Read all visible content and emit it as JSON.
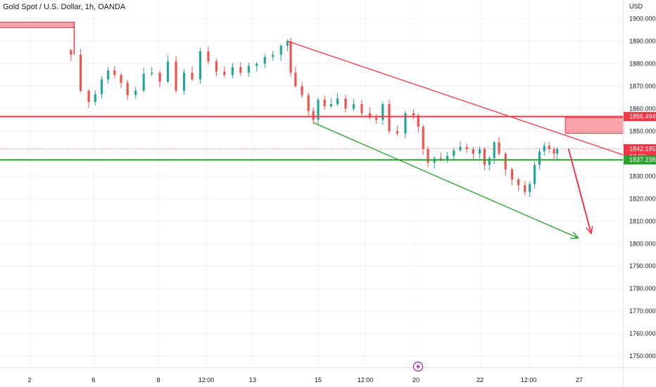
{
  "header": {
    "title": "Gold Spot / U.S. Dollar, 1h, OANDA"
  },
  "price_axis": {
    "unit": "USD",
    "ticks": [
      "1900.000",
      "1890.000",
      "1880.000",
      "1870.000",
      "1860.000",
      "1850.000",
      "1830.000",
      "1820.000",
      "1810.000",
      "1800.000",
      "1790.000",
      "1780.000",
      "1770.000",
      "1760.000",
      "1750.000"
    ]
  },
  "time_axis": {
    "ticks": [
      "2",
      "6",
      "8",
      "12:00",
      "13",
      "15",
      "12:00",
      "20",
      "22",
      "12:00",
      "27"
    ]
  },
  "price_labels": {
    "resistance": {
      "text": "1856.494",
      "color": "#f23645"
    },
    "current": {
      "text": "1842.185",
      "countdown": "17:53",
      "color": "#f23645"
    },
    "support": {
      "text": "1837.238",
      "color": "#2ba02d"
    }
  },
  "event_marker": {
    "icon": "lightning-icon",
    "color": "#9c27b0"
  },
  "chart_data": {
    "type": "candlestick",
    "title": "Gold Spot / U.S. Dollar, 1h, OANDA",
    "x_unit": "hourly bars, days of month",
    "y_unit": "USD",
    "ylim": [
      1745,
      1904
    ],
    "grid": true,
    "horizontal_levels": [
      {
        "name": "resistance",
        "price": 1856.494,
        "color": "#f23645"
      },
      {
        "name": "support",
        "price": 1837.238,
        "color": "#2ba02d"
      }
    ],
    "current_price": 1842.185,
    "zones": [
      {
        "from_day": 1.2,
        "to_day": 5.4,
        "high": 1898.5,
        "low": 1896.0,
        "color": "#f23645"
      },
      {
        "from_day": 20.6,
        "to_day": 22.4,
        "high": 1856.0,
        "low": 1849.0,
        "color": "#f23645"
      }
    ],
    "trendlines": [
      {
        "name": "upper-channel",
        "from": [
          12.0,
          1890.0
        ],
        "to": [
          23.0,
          1836.5
        ],
        "color": "#f23645",
        "arrow": true
      },
      {
        "name": "lower-channel",
        "from": [
          12.8,
          1853.8
        ],
        "to": [
          21.0,
          1802.5
        ],
        "color": "#2ba02d",
        "arrow": true
      },
      {
        "name": "forecast",
        "from": [
          20.7,
          1842.2
        ],
        "to": [
          21.4,
          1804.5
        ],
        "color": "#f23645",
        "arrow": true
      }
    ],
    "closes": [
      [
        5.3,
        1884.0
      ],
      [
        5.6,
        1868.0
      ],
      [
        5.85,
        1863.0
      ],
      [
        6.05,
        1866.5
      ],
      [
        6.25,
        1873.0
      ],
      [
        6.45,
        1877.0
      ],
      [
        6.65,
        1875.0
      ],
      [
        6.85,
        1871.5
      ],
      [
        7.05,
        1866.0
      ],
      [
        7.3,
        1868.0
      ],
      [
        7.55,
        1875.5
      ],
      [
        7.8,
        1876.0
      ],
      [
        8.05,
        1872.0
      ],
      [
        8.3,
        1881.0
      ],
      [
        8.55,
        1868.0
      ],
      [
        8.8,
        1876.0
      ],
      [
        9.05,
        1873.0
      ],
      [
        9.3,
        1885.5
      ],
      [
        9.55,
        1881.0
      ],
      [
        9.8,
        1876.5
      ],
      [
        10.05,
        1875.0
      ],
      [
        10.3,
        1878.5
      ],
      [
        10.55,
        1876.0
      ],
      [
        10.8,
        1879.0
      ],
      [
        11.05,
        1880.0
      ],
      [
        11.3,
        1883.0
      ],
      [
        11.55,
        1884.0
      ],
      [
        11.8,
        1888.0
      ],
      [
        12.0,
        1890.0
      ],
      [
        12.1,
        1876.0
      ],
      [
        12.25,
        1870.0
      ],
      [
        12.45,
        1866.0
      ],
      [
        12.65,
        1859.0
      ],
      [
        12.8,
        1855.0
      ],
      [
        12.95,
        1864.0
      ],
      [
        13.15,
        1861.0
      ],
      [
        13.35,
        1862.0
      ],
      [
        13.55,
        1864.5
      ],
      [
        13.8,
        1860.0
      ],
      [
        14.05,
        1862.0
      ],
      [
        14.3,
        1858.0
      ],
      [
        14.55,
        1856.0
      ],
      [
        14.75,
        1855.0
      ],
      [
        14.95,
        1862.0
      ],
      [
        15.15,
        1850.0
      ],
      [
        15.4,
        1849.0
      ],
      [
        15.65,
        1858.0
      ],
      [
        15.9,
        1857.0
      ],
      [
        16.05,
        1852.0
      ],
      [
        16.2,
        1842.0
      ],
      [
        16.35,
        1836.0
      ],
      [
        16.55,
        1838.0
      ],
      [
        16.75,
        1837.5
      ],
      [
        16.95,
        1839.0
      ],
      [
        17.15,
        1841.5
      ],
      [
        17.35,
        1843.0
      ],
      [
        17.55,
        1842.0
      ],
      [
        17.75,
        1840.0
      ],
      [
        17.95,
        1842.0
      ],
      [
        18.1,
        1835.0
      ],
      [
        18.25,
        1838.0
      ],
      [
        18.4,
        1845.0
      ],
      [
        18.55,
        1840.0
      ],
      [
        18.75,
        1833.0
      ],
      [
        18.95,
        1828.5
      ],
      [
        19.15,
        1826.0
      ],
      [
        19.35,
        1823.0
      ],
      [
        19.5,
        1826.5
      ],
      [
        19.65,
        1835.0
      ],
      [
        19.8,
        1841.0
      ],
      [
        19.95,
        1843.5
      ],
      [
        20.1,
        1842.0
      ],
      [
        20.25,
        1840.0
      ],
      [
        20.35,
        1842.185
      ]
    ]
  }
}
